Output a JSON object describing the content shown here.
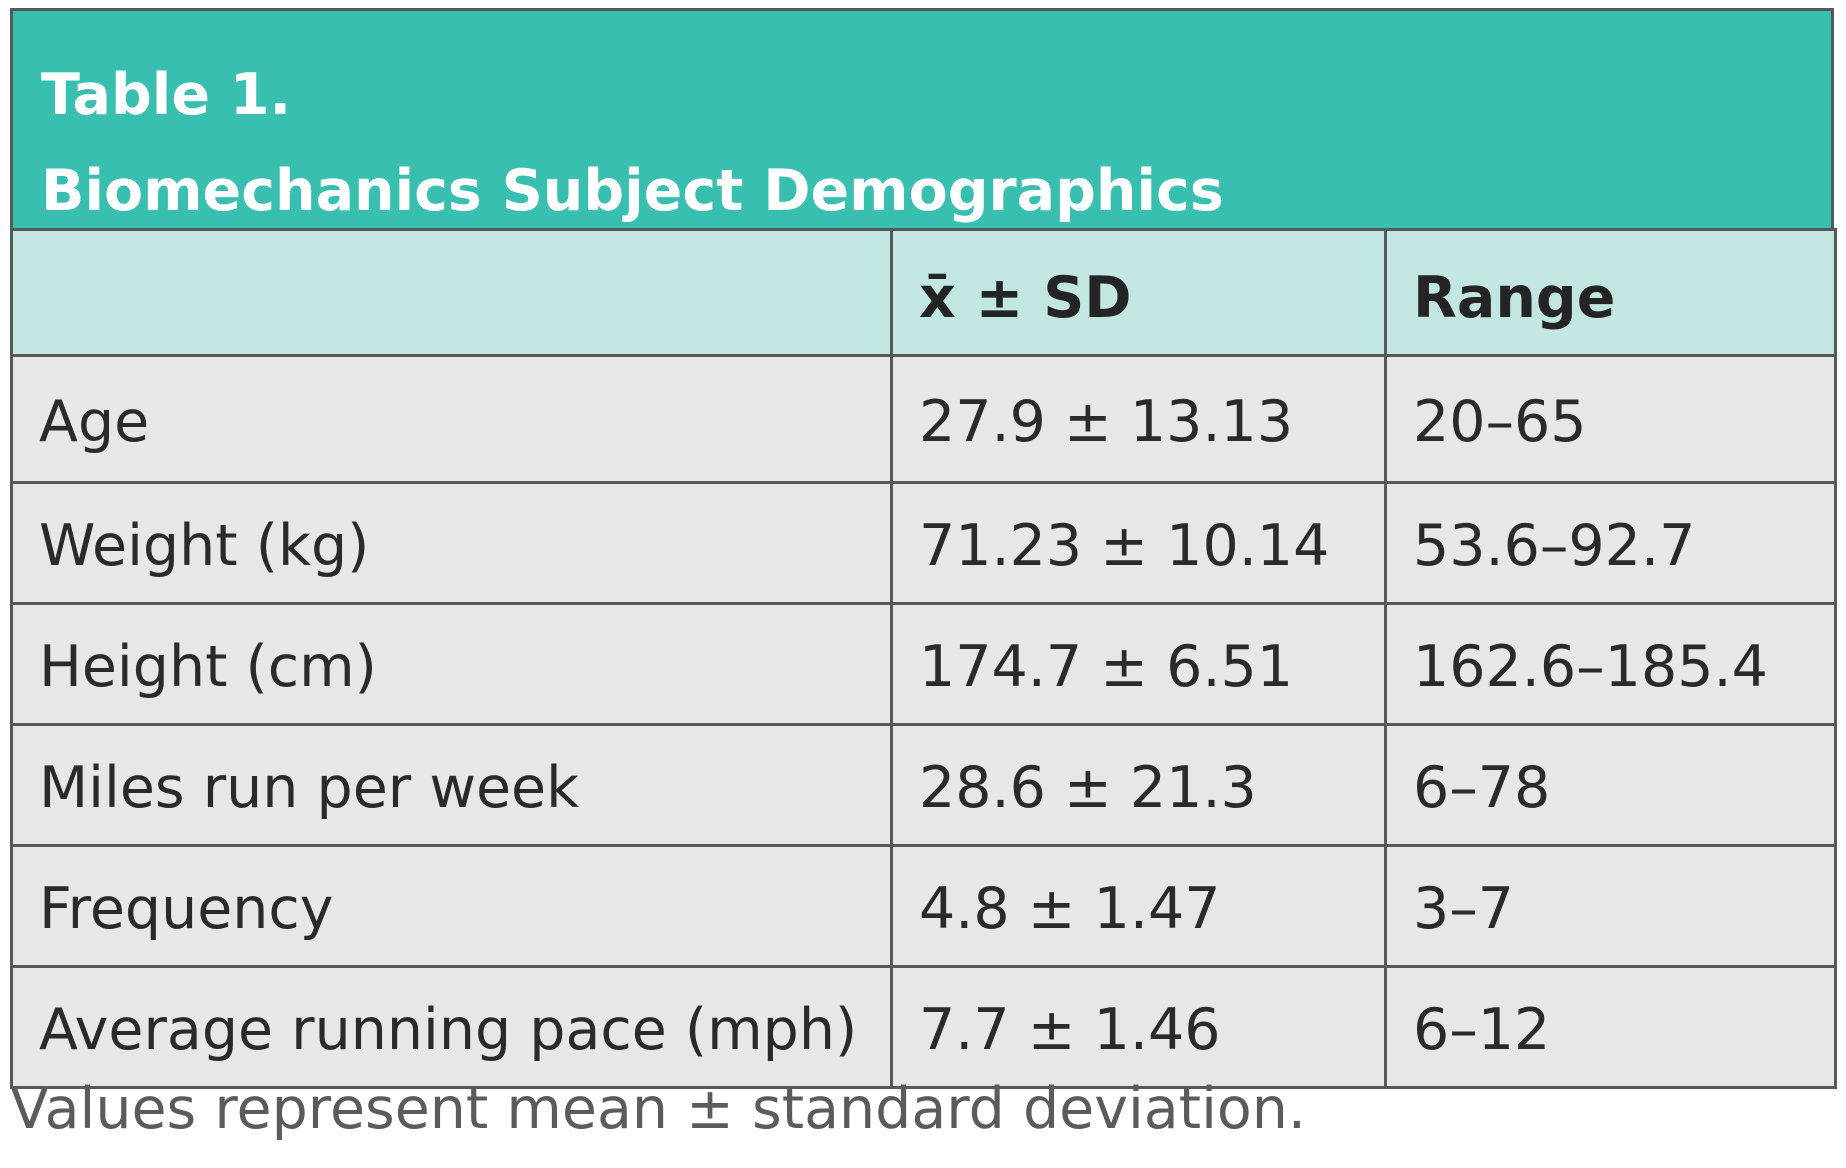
{
  "table": {
    "title_line1": "Table 1.",
    "title_line2": "Biomechanics Subject Demographics",
    "headers": [
      "",
      "x̄ ± SD",
      "Range"
    ],
    "rows": [
      [
        "Age",
        "27.9 ± 13.13",
        "20–65"
      ],
      [
        "Weight (kg)",
        "71.23 ± 10.14",
        "53.6–92.7"
      ],
      [
        "Height (cm)",
        "174.7 ± 6.51",
        "162.6–185.4"
      ],
      [
        "Miles run per week",
        "28.6 ± 21.3",
        "6–78"
      ],
      [
        "Frequency",
        "4.8 ± 1.47",
        "3–7"
      ],
      [
        "Average running pace (mph)",
        "7.7 ± 1.46",
        "6–12"
      ]
    ],
    "footnote": "Values represent mean ± standard deviation."
  },
  "colors": {
    "title_background": "#38bfb0",
    "header_background": "#c2e6e1",
    "row_background": "#e7e7e7",
    "border": "#555a59"
  }
}
